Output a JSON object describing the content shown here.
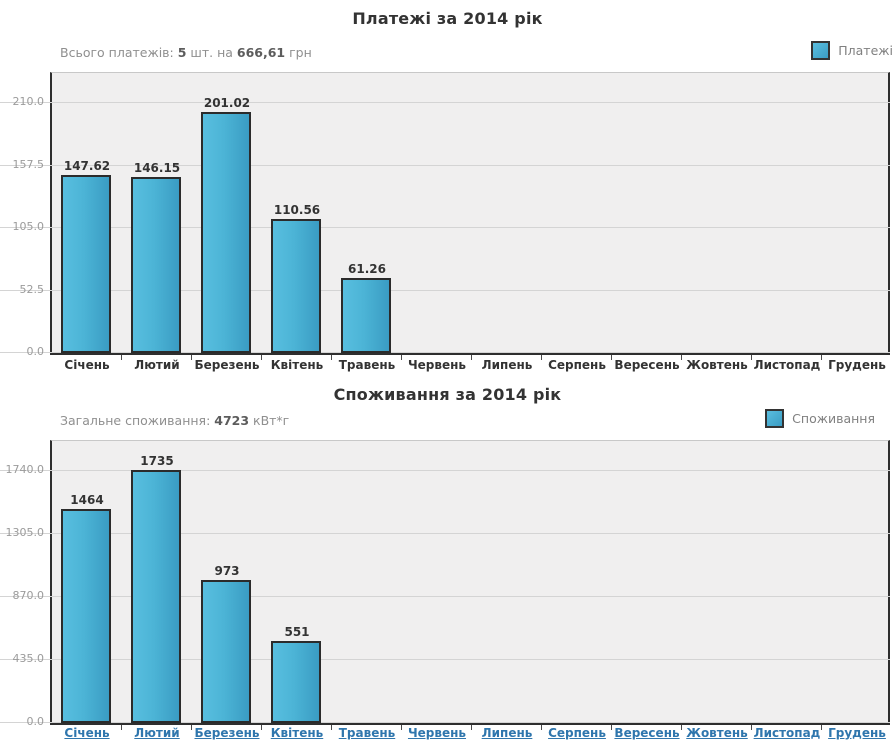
{
  "colors": {
    "bar_fill_light": "#58bedf",
    "bar_fill_dark": "#3a9cc3",
    "bar_border": "#2b2b2b",
    "plot_background": "#f0efef",
    "gridline": "#d4d4d4",
    "axis": "#2e2e2e",
    "tick_label": "#9b9b9b",
    "title": "#333333",
    "subtitle": "#8f8f8f",
    "month_link": "#2f76ad"
  },
  "charts": [
    {
      "title": "Платежі за 2014 рік",
      "subtitle_parts": [
        {
          "text": "Всього платежів: ",
          "bold": false
        },
        {
          "text": "5",
          "bold": true
        },
        {
          "text": " шт. на ",
          "bold": false
        },
        {
          "text": "666,61",
          "bold": true
        },
        {
          "text": " грн",
          "bold": false
        }
      ],
      "legend_label": "Платежі",
      "chart_data": {
        "type": "bar",
        "title": "Платежі за 2014 рік",
        "categories": [
          "Січень",
          "Лютий",
          "Березень",
          "Квітень",
          "Травень",
          "Червень",
          "Липень",
          "Серпень",
          "Вересень",
          "Жовтень",
          "Листопад",
          "Грудень"
        ],
        "values": [
          147.62,
          146.15,
          201.02,
          110.56,
          61.26,
          0,
          0,
          0,
          0,
          0,
          0,
          0
        ],
        "value_labels": [
          "147.62",
          "146.15",
          "201.02",
          "110.56",
          "61.26",
          "",
          "",
          "",
          "",
          "",
          "",
          ""
        ],
        "yticks": [
          0,
          52.5,
          105,
          157.5,
          210
        ],
        "ytick_labels": [
          "0.0",
          "52.5",
          "105.0",
          "157.5",
          "210.0"
        ],
        "ylim": [
          0,
          235
        ],
        "grid": true,
        "legend_position": "top-right",
        "x_labels_are_links": false
      }
    },
    {
      "title": "Споживання за 2014 рік",
      "subtitle_parts": [
        {
          "text": "Загальне споживання: ",
          "bold": false
        },
        {
          "text": "4723",
          "bold": true
        },
        {
          "text": " кВт*г",
          "bold": false
        }
      ],
      "legend_label": "Споживання",
      "chart_data": {
        "type": "bar",
        "title": "Споживання за 2014 рік",
        "categories": [
          "Січень",
          "Лютий",
          "Березень",
          "Квітень",
          "Травень",
          "Червень",
          "Липень",
          "Серпень",
          "Вересень",
          "Жовтень",
          "Листопад",
          "Грудень"
        ],
        "values": [
          1464,
          1735,
          973,
          551,
          0,
          0,
          0,
          0,
          0,
          0,
          0,
          0
        ],
        "value_labels": [
          "1464",
          "1735",
          "973",
          "551",
          "",
          "",
          "",
          "",
          "",
          "",
          "",
          ""
        ],
        "yticks": [
          0,
          435,
          870,
          1305,
          1740
        ],
        "ytick_labels": [
          "0.0",
          "435.0",
          "870.0",
          "1305.0",
          "1740.0"
        ],
        "ylim": [
          0,
          1948
        ],
        "grid": true,
        "legend_position": "top-right",
        "x_labels_are_links": true
      }
    }
  ]
}
